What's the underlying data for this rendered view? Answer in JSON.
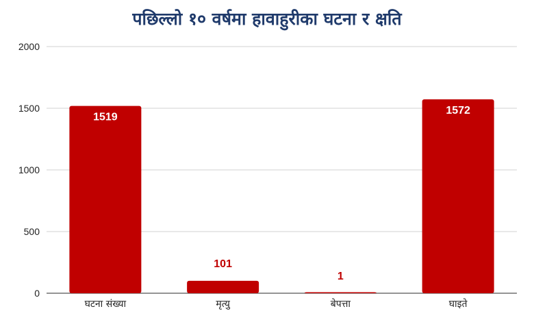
{
  "chart_data": {
    "type": "bar",
    "title": "पछिल्लो १० वर्षमा हावाहुरीका घटना र क्षति",
    "categories": [
      "घटना संख्या",
      "मृत्यु",
      "बेपत्ता",
      "घाइते"
    ],
    "values": [
      1519,
      101,
      1,
      1572
    ],
    "ylim": [
      0,
      2000
    ],
    "yticks": [
      0,
      500,
      1000,
      1500,
      2000
    ],
    "grid": true,
    "bar_color": "#c00000",
    "label_inside_color": "#ffffff",
    "label_outside_color": "#c00000"
  }
}
